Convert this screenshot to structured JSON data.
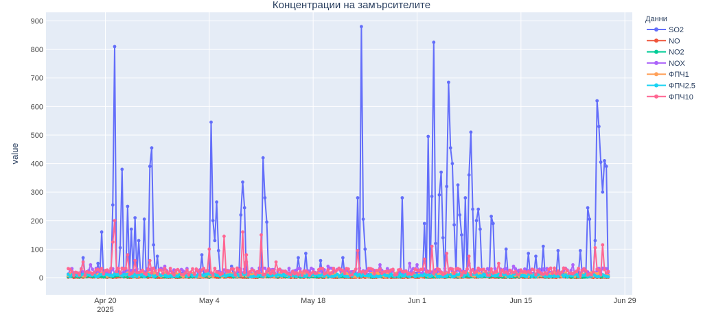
{
  "chart_data": {
    "type": "line",
    "title": "Концентрации на замърсителите",
    "xlabel": "",
    "ylabel": "value",
    "x_range": [
      "2025-04-12",
      "2025-06-30"
    ],
    "ylim": [
      -60,
      930
    ],
    "y_ticks": [
      0,
      100,
      200,
      300,
      400,
      500,
      600,
      700,
      800,
      900
    ],
    "x_ticks": [
      {
        "date": "2025-04-20",
        "label": "Apr 20",
        "sub": "2025"
      },
      {
        "date": "2025-05-04",
        "label": "May 4",
        "sub": ""
      },
      {
        "date": "2025-05-18",
        "label": "May 18",
        "sub": ""
      },
      {
        "date": "2025-06-01",
        "label": "Jun 1",
        "sub": ""
      },
      {
        "date": "2025-06-15",
        "label": "Jun 15",
        "sub": ""
      },
      {
        "date": "2025-06-29",
        "label": "Jun 29",
        "sub": ""
      }
    ],
    "grid": true,
    "legend_title": "Данни",
    "legend_position": "top-right",
    "plot_bg": "#e5ecf6",
    "series": [
      {
        "name": "SO2",
        "color": "#636efa",
        "base": 10,
        "peaks": [
          [
            "2025-04-17",
            70
          ],
          [
            "2025-04-19",
            50
          ],
          [
            "2025-04-19T12:00",
            160
          ],
          [
            "2025-04-21T06:00",
            810
          ],
          [
            "2025-04-21",
            255
          ],
          [
            "2025-04-22T06:00",
            380
          ],
          [
            "2025-04-22",
            105
          ],
          [
            "2025-04-23",
            250
          ],
          [
            "2025-04-23T12:00",
            170
          ],
          [
            "2025-04-24",
            210
          ],
          [
            "2025-04-24T12:00",
            130
          ],
          [
            "2025-04-25T06:00",
            205
          ],
          [
            "2025-04-26T06:00",
            455
          ],
          [
            "2025-04-26",
            390
          ],
          [
            "2025-04-26T12:00",
            115
          ],
          [
            "2025-04-27",
            75
          ],
          [
            "2025-05-03",
            80
          ],
          [
            "2025-05-04T06:00",
            545
          ],
          [
            "2025-05-04T12:00",
            200
          ],
          [
            "2025-05-04T18:00",
            130
          ],
          [
            "2025-05-05",
            265
          ],
          [
            "2025-05-05T06:00",
            95
          ],
          [
            "2025-05-07",
            40
          ],
          [
            "2025-05-08T06:00",
            220
          ],
          [
            "2025-05-08T12:00",
            335
          ],
          [
            "2025-05-08T18:00",
            245
          ],
          [
            "2025-05-11T06:00",
            420
          ],
          [
            "2025-05-11T12:00",
            280
          ],
          [
            "2025-05-11T18:00",
            195
          ],
          [
            "2025-05-16",
            70
          ],
          [
            "2025-05-17",
            85
          ],
          [
            "2025-05-19",
            60
          ],
          [
            "2025-05-22",
            70
          ],
          [
            "2025-05-24T12:00",
            880
          ],
          [
            "2025-05-24",
            280
          ],
          [
            "2025-05-24T18:00",
            205
          ],
          [
            "2025-05-25",
            100
          ],
          [
            "2025-05-30",
            280
          ],
          [
            "2025-06-02",
            190
          ],
          [
            "2025-06-02T12:00",
            495
          ],
          [
            "2025-06-03T06:00",
            825
          ],
          [
            "2025-06-03",
            285
          ],
          [
            "2025-06-03T12:00",
            120
          ],
          [
            "2025-06-04T06:00",
            370
          ],
          [
            "2025-06-04",
            290
          ],
          [
            "2025-06-04T12:00",
            140
          ],
          [
            "2025-06-05",
            320
          ],
          [
            "2025-06-05T06:00",
            685
          ],
          [
            "2025-06-05T12:00",
            455
          ],
          [
            "2025-06-05T18:00",
            400
          ],
          [
            "2025-06-06",
            185
          ],
          [
            "2025-06-06T12:00",
            325
          ],
          [
            "2025-06-06T18:00",
            220
          ],
          [
            "2025-06-07",
            150
          ],
          [
            "2025-06-07T12:00",
            280
          ],
          [
            "2025-06-08T06:00",
            510
          ],
          [
            "2025-06-08",
            360
          ],
          [
            "2025-06-08T12:00",
            240
          ],
          [
            "2025-06-09",
            200
          ],
          [
            "2025-06-09T06:00",
            240
          ],
          [
            "2025-06-09T12:00",
            170
          ],
          [
            "2025-06-11",
            215
          ],
          [
            "2025-06-11T06:00",
            190
          ],
          [
            "2025-06-13",
            100
          ],
          [
            "2025-06-16",
            85
          ],
          [
            "2025-06-17",
            75
          ],
          [
            "2025-06-18",
            110
          ],
          [
            "2025-06-20",
            95
          ],
          [
            "2025-06-23",
            95
          ],
          [
            "2025-06-24",
            245
          ],
          [
            "2025-06-24T06:00",
            205
          ],
          [
            "2025-06-25",
            130
          ],
          [
            "2025-06-25T06:00",
            620
          ],
          [
            "2025-06-25T12:00",
            530
          ],
          [
            "2025-06-25T18:00",
            405
          ],
          [
            "2025-06-26",
            300
          ],
          [
            "2025-06-26T06:00",
            410
          ],
          [
            "2025-06-26T12:00",
            390
          ]
        ]
      },
      {
        "name": "NO",
        "color": "#ef553b",
        "base": 2,
        "peaks": []
      },
      {
        "name": "NO2",
        "color": "#00cc96",
        "base": 5,
        "peaks": []
      },
      {
        "name": "NOX",
        "color": "#ab63fa",
        "base": 20,
        "peaks": [
          [
            "2025-04-18",
            45
          ],
          [
            "2025-04-28",
            40
          ],
          [
            "2025-05-09",
            55
          ],
          [
            "2025-05-20",
            40
          ],
          [
            "2025-05-27",
            45
          ],
          [
            "2025-05-31",
            50
          ],
          [
            "2025-06-01",
            45
          ],
          [
            "2025-06-08",
            50
          ],
          [
            "2025-06-14",
            40
          ],
          [
            "2025-06-22",
            45
          ]
        ]
      },
      {
        "name": "ФПЧ1",
        "color": "#ffa15a",
        "base": 10,
        "peaks": []
      },
      {
        "name": "ФПЧ2.5",
        "color": "#19d3f3",
        "base": 8,
        "peaks": []
      },
      {
        "name": "ФПЧ10",
        "color": "#ff6692",
        "base": 20,
        "peaks": [
          [
            "2025-04-17",
            55
          ],
          [
            "2025-04-21T06:00",
            200
          ],
          [
            "2025-04-21",
            125
          ],
          [
            "2025-04-23",
            80
          ],
          [
            "2025-04-24",
            60
          ],
          [
            "2025-04-26",
            60
          ],
          [
            "2025-05-04",
            100
          ],
          [
            "2025-05-06",
            145
          ],
          [
            "2025-05-08T12:00",
            160
          ],
          [
            "2025-05-09",
            80
          ],
          [
            "2025-05-11",
            150
          ],
          [
            "2025-05-13",
            55
          ],
          [
            "2025-05-24",
            95
          ],
          [
            "2025-06-02",
            65
          ],
          [
            "2025-06-03",
            110
          ],
          [
            "2025-06-05",
            85
          ],
          [
            "2025-06-08",
            75
          ],
          [
            "2025-06-12",
            50
          ],
          [
            "2025-06-25",
            105
          ],
          [
            "2025-06-26",
            115
          ]
        ]
      }
    ]
  }
}
